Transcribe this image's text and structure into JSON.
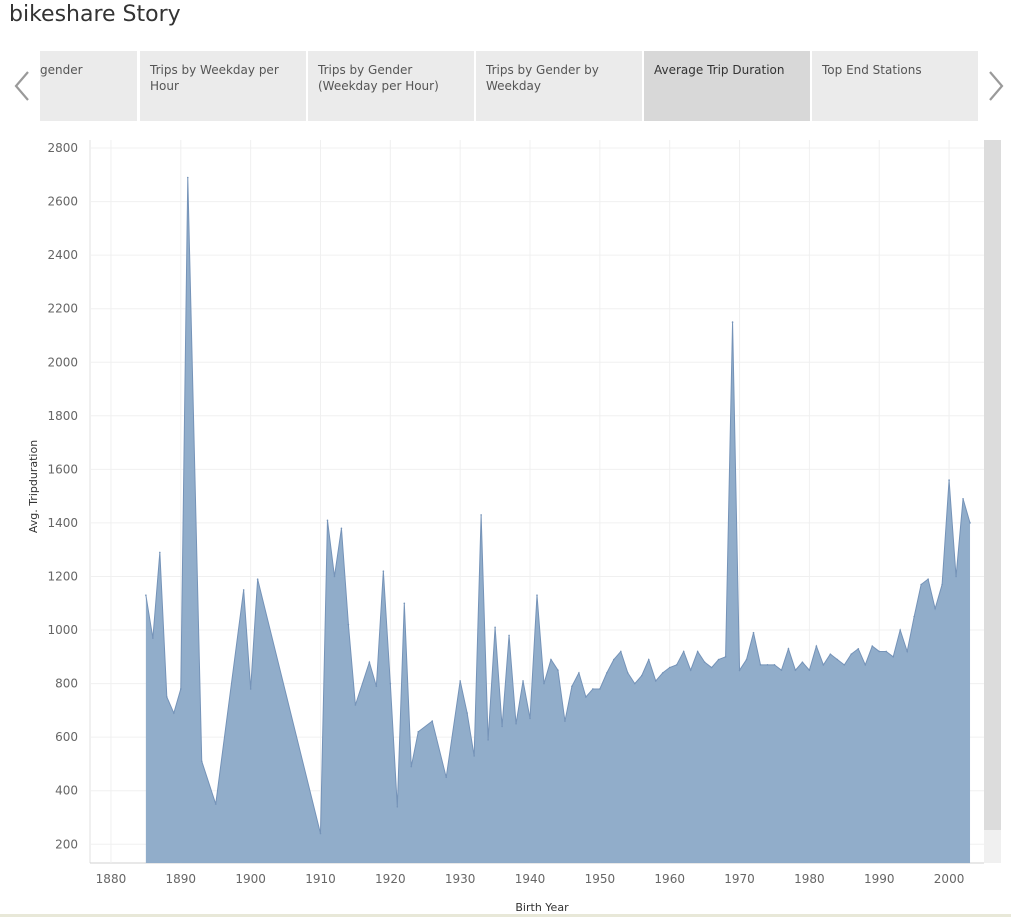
{
  "story": {
    "title": "bikeshare Story"
  },
  "tabs": [
    {
      "label": "gender",
      "active": false
    },
    {
      "label": "Trips by Weekday per Hour",
      "active": false
    },
    {
      "label": "Trips by Gender (Weekday per Hour)",
      "active": false
    },
    {
      "label": "Trips by Gender by Weekday",
      "active": false
    },
    {
      "label": "Average Trip Duration",
      "active": true
    },
    {
      "label": "Top End Stations",
      "active": false
    }
  ],
  "icons": {
    "prev": "chevron-left-icon",
    "next": "chevron-right-icon"
  },
  "colors": {
    "area_fill": "#8fabc9",
    "area_stroke": "#7593b8",
    "active_tab": "#d8d8d8",
    "tab": "#ebebeb"
  },
  "chart_data": {
    "type": "area",
    "xlabel": "Birth Year",
    "ylabel": "Avg. Tripduration",
    "xlim": [
      1877,
      2005
    ],
    "ylim": [
      130,
      2830
    ],
    "xticks": [
      1880,
      1890,
      1900,
      1910,
      1920,
      1930,
      1940,
      1950,
      1960,
      1970,
      1980,
      1990,
      2000
    ],
    "yticks": [
      200,
      400,
      600,
      800,
      1000,
      1200,
      1400,
      1600,
      1800,
      2000,
      2200,
      2400,
      2600,
      2800
    ],
    "grid": true,
    "series": [
      {
        "x": [
          1885,
          1886,
          1887,
          1888,
          1889,
          1890,
          1891,
          1893,
          1895,
          1899,
          1900,
          1901,
          1910,
          1911,
          1912,
          1913,
          1914,
          1915,
          1917,
          1918,
          1919,
          1920,
          1921,
          1922,
          1923,
          1924,
          1926,
          1928,
          1930,
          1931,
          1932,
          1933,
          1934,
          1935,
          1936,
          1937,
          1938,
          1939,
          1940,
          1941,
          1942,
          1943,
          1944,
          1945,
          1946,
          1947,
          1948,
          1949,
          1950,
          1951,
          1952,
          1953,
          1954,
          1955,
          1956,
          1957,
          1958,
          1959,
          1960,
          1961,
          1962,
          1963,
          1964,
          1965,
          1966,
          1967,
          1968,
          1969,
          1970,
          1971,
          1972,
          1973,
          1974,
          1975,
          1976,
          1977,
          1978,
          1979,
          1980,
          1981,
          1982,
          1983,
          1984,
          1985,
          1986,
          1987,
          1988,
          1989,
          1990,
          1991,
          1992,
          1993,
          1994,
          1995,
          1996,
          1997,
          1998,
          1999,
          2000,
          2001,
          2002,
          2003
        ],
        "y": [
          1130,
          970,
          1290,
          750,
          690,
          780,
          2690,
          510,
          350,
          1150,
          780,
          1190,
          240,
          1410,
          1200,
          1380,
          1020,
          720,
          880,
          790,
          1220,
          800,
          340,
          1100,
          490,
          620,
          660,
          450,
          810,
          690,
          530,
          1430,
          590,
          1010,
          640,
          980,
          650,
          810,
          670,
          1130,
          800,
          890,
          850,
          660,
          790,
          840,
          750,
          780,
          780,
          840,
          890,
          920,
          840,
          800,
          830,
          890,
          810,
          840,
          860,
          870,
          920,
          850,
          920,
          880,
          860,
          890,
          900,
          2150,
          850,
          890,
          990,
          870,
          870,
          870,
          850,
          930,
          850,
          880,
          850,
          940,
          870,
          910,
          890,
          870,
          910,
          930,
          870,
          940,
          920,
          920,
          900,
          1000,
          920,
          1050,
          1170,
          1190,
          1080,
          1170,
          1560,
          1200,
          1490,
          1400
        ]
      }
    ]
  }
}
